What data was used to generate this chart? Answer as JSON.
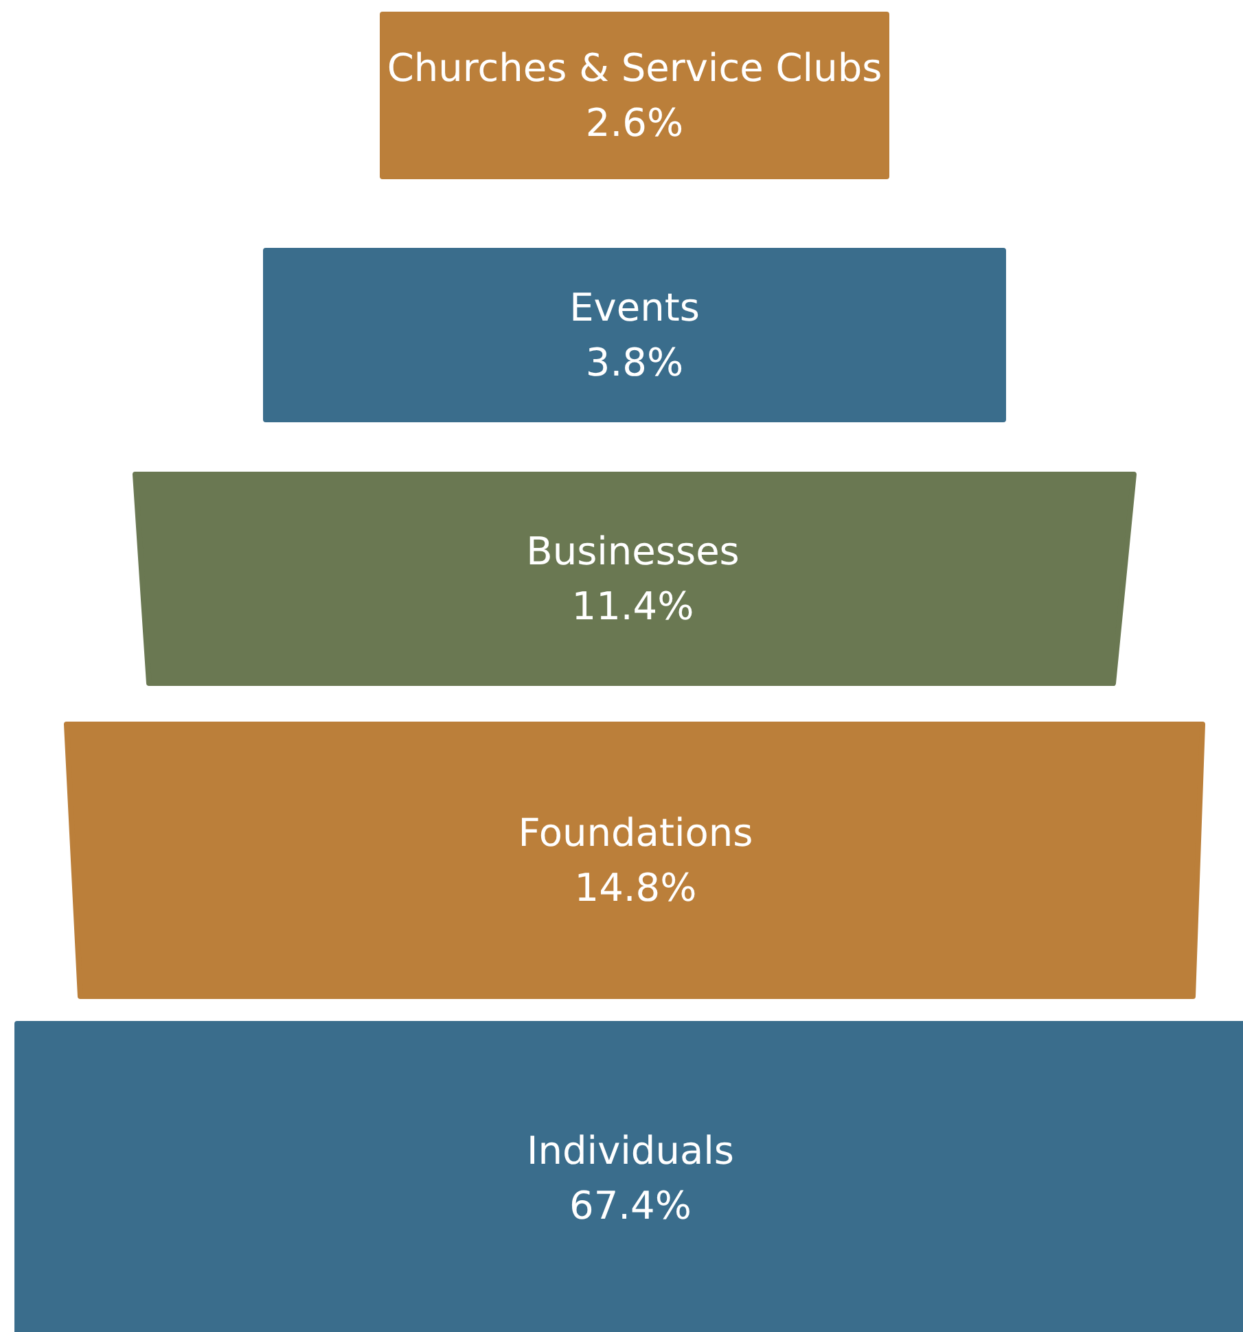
{
  "chart_data": {
    "type": "other",
    "categories": [
      "Churches & Service Clubs",
      "Events",
      "Businesses",
      "Foundations",
      "Individuals"
    ],
    "values": [
      2.6,
      3.8,
      11.4,
      14.8,
      67.4
    ],
    "value_labels": [
      "2.6%",
      "3.8%",
      "11.4%",
      "14.8%",
      "67.4%"
    ],
    "colors": [
      "#bb7f3a",
      "#3a6d8c",
      "#6a7852",
      "#bb7f3a",
      "#3a6d8c"
    ]
  }
}
